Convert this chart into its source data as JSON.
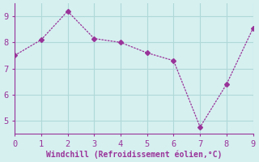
{
  "x": [
    0,
    1,
    2,
    3,
    4,
    5,
    6,
    7,
    8,
    9
  ],
  "y": [
    7.5,
    8.1,
    9.2,
    8.15,
    8.0,
    7.6,
    7.3,
    4.75,
    6.4,
    8.55
  ],
  "line_color": "#993399",
  "marker": "D",
  "marker_size": 3,
  "bg_color": "#d6f0f0",
  "grid_color": "#b0d8d8",
  "axis_color": "#993399",
  "xlabel": "Windchill (Refroidissement éolien,°C)",
  "xlim": [
    0,
    9
  ],
  "ylim": [
    4.5,
    9.5
  ],
  "xticks": [
    0,
    1,
    2,
    3,
    4,
    5,
    6,
    7,
    8,
    9
  ],
  "yticks": [
    5,
    6,
    7,
    8,
    9
  ],
  "font_color": "#993399",
  "font_size": 7.5,
  "label_font_size": 7
}
